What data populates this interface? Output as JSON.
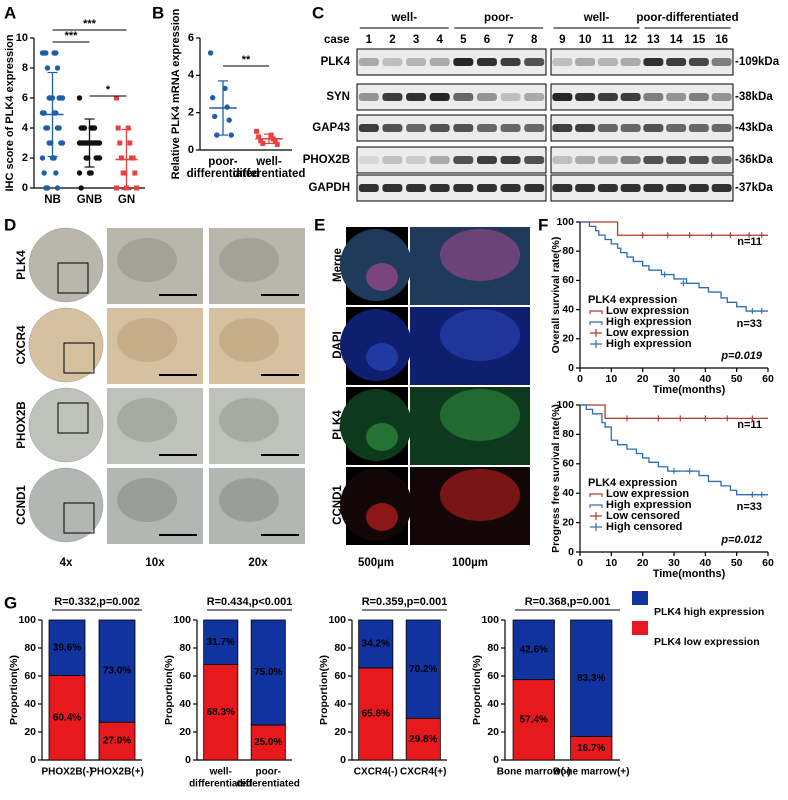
{
  "panel_labels": [
    "A",
    "B",
    "C",
    "D",
    "E",
    "F",
    "G"
  ],
  "chart_data": [
    {
      "type": "strip",
      "ylabel": "IHC score of PLK4 expression",
      "categories": [
        "NB",
        "GNB",
        "GN"
      ],
      "colors": [
        "#1f5fa8",
        "#111111",
        "#e8423f"
      ],
      "markers": [
        "circle",
        "circle",
        "square"
      ],
      "points": [
        [
          9,
          9,
          9,
          9,
          9,
          8,
          8,
          6,
          6,
          6,
          6,
          6,
          6,
          5,
          5,
          5,
          5,
          4,
          4,
          4,
          4,
          3,
          3,
          3,
          3,
          2,
          2,
          2,
          1,
          1,
          0,
          0,
          0
        ],
        [
          6,
          4,
          4,
          4,
          4,
          4,
          4,
          3,
          3,
          3,
          3,
          3,
          3,
          3,
          3,
          3,
          3,
          3,
          3,
          3,
          2,
          2,
          2,
          2,
          2,
          1,
          1,
          1,
          0
        ],
        [
          6,
          4,
          4,
          3,
          3,
          2,
          2,
          2,
          1,
          1,
          1,
          0,
          0,
          0
        ]
      ],
      "mean": [
        4.9,
        3.0,
        1.9
      ],
      "sd": [
        2.8,
        1.6,
        2.0
      ],
      "ylim": [
        0,
        10
      ],
      "yticks": [
        0,
        2,
        4,
        6,
        8,
        10
      ],
      "annotations": [
        {
          "text": "***",
          "between": [
            0,
            2
          ]
        },
        {
          "text": "***",
          "between": [
            0,
            1
          ]
        },
        {
          "text": "*",
          "between": [
            1,
            2
          ]
        }
      ]
    },
    {
      "type": "strip",
      "ylabel": "Relative PLK4 mRNA expression",
      "categories": [
        [
          "poor-",
          "differentiated"
        ],
        [
          "well-",
          "differentiated"
        ]
      ],
      "colors": [
        "#1f5fa8",
        "#e8423f"
      ],
      "markers": [
        "circle",
        "square"
      ],
      "points": [
        [
          5.2,
          3.3,
          2.8,
          2.3,
          1.8,
          1.6,
          0.8,
          0.8
        ],
        [
          1.0,
          0.8,
          0.7,
          0.6,
          0.5,
          0.45,
          0.35,
          0.3
        ]
      ],
      "mean": [
        2.25,
        0.6
      ],
      "sd": [
        1.45,
        0.25
      ],
      "ylim": [
        0,
        6
      ],
      "yticks": [
        0,
        2,
        4,
        6
      ],
      "annotations": [
        {
          "text": "**",
          "between": [
            0,
            1
          ]
        }
      ]
    },
    {
      "type": "step",
      "xlabel": "Time(months)",
      "ylabel": "Overall survival rate(%)",
      "xlim": [
        0,
        60
      ],
      "xticks": [
        0,
        10,
        20,
        30,
        40,
        50,
        60
      ],
      "ylim": [
        0,
        100
      ],
      "yticks": [
        0,
        20,
        40,
        60,
        80,
        100
      ],
      "legend_title": "PLK4 expression",
      "n_low": "n=11",
      "n_high": "n=33",
      "p_value": "p=0.019",
      "series": [
        {
          "name": "Low expression",
          "kind": "line",
          "color": "#b03a2e",
          "x": [
            0,
            12,
            12,
            60
          ],
          "values": [
            100,
            100,
            90.9,
            90.9
          ]
        },
        {
          "name": "High expression",
          "kind": "line",
          "color": "#2e6db4",
          "x": [
            0,
            3,
            3,
            5,
            5,
            6,
            6,
            8,
            8,
            10,
            10,
            12,
            12,
            13,
            13,
            15,
            15,
            17,
            17,
            20,
            20,
            22,
            22,
            26,
            26,
            30,
            30,
            34,
            34,
            38,
            38,
            41,
            41,
            45,
            45,
            47,
            47,
            50,
            50,
            53,
            53,
            60
          ],
          "values": [
            100,
            100,
            97,
            97,
            94,
            94,
            91,
            91,
            88,
            88,
            85,
            85,
            82,
            82,
            79,
            79,
            76,
            76,
            73,
            73,
            70,
            70,
            67,
            67,
            64,
            64,
            61,
            61,
            58,
            58,
            55,
            55,
            52,
            52,
            48,
            48,
            45,
            45,
            42,
            42,
            39,
            39
          ]
        },
        {
          "name": "Low expression",
          "kind": "censor",
          "color": "#b03a2e",
          "x": [
            20,
            28,
            35,
            42,
            48,
            54,
            58
          ],
          "values": [
            90.9,
            90.9,
            90.9,
            90.9,
            90.9,
            90.9,
            90.9
          ]
        },
        {
          "name": "High expression",
          "kind": "censor",
          "color": "#2e6db4",
          "x": [
            27,
            33,
            55,
            58
          ],
          "values": [
            64,
            58,
            39,
            39
          ]
        }
      ]
    },
    {
      "type": "step",
      "xlabel": "Time(months)",
      "ylabel": "Progress free survival rate(%)",
      "xlim": [
        0,
        60
      ],
      "xticks": [
        0,
        10,
        20,
        30,
        40,
        50,
        60
      ],
      "ylim": [
        0,
        100
      ],
      "yticks": [
        0,
        20,
        40,
        60,
        80,
        100
      ],
      "legend_title": "PLK4 expression",
      "n_low": "n=11",
      "n_high": "n=33",
      "p_value": "p=0.012",
      "series": [
        {
          "name": "Low expression",
          "kind": "line",
          "color": "#b03a2e",
          "x": [
            0,
            8,
            8,
            60
          ],
          "values": [
            100,
            100,
            90.9,
            90.9
          ]
        },
        {
          "name": "High expression",
          "kind": "line",
          "color": "#2e6db4",
          "x": [
            0,
            2,
            2,
            4,
            4,
            7,
            7,
            8,
            8,
            10,
            10,
            12,
            12,
            15,
            15,
            18,
            18,
            20,
            20,
            22,
            22,
            25,
            25,
            28,
            28,
            38,
            38,
            41,
            41,
            45,
            45,
            48,
            48,
            50,
            50,
            60
          ],
          "values": [
            100,
            100,
            97,
            97,
            94,
            94,
            88,
            88,
            85,
            85,
            76,
            76,
            73,
            73,
            70,
            70,
            67,
            67,
            64,
            64,
            61,
            61,
            58,
            58,
            55,
            55,
            52,
            52,
            48,
            48,
            45,
            45,
            42,
            42,
            39,
            39
          ]
        },
        {
          "name": "Low censored",
          "kind": "censor",
          "color": "#b03a2e",
          "x": [
            15,
            25,
            32,
            40,
            47,
            55
          ],
          "values": [
            90.9,
            90.9,
            90.9,
            90.9,
            90.9,
            90.9
          ]
        },
        {
          "name": "High censored",
          "kind": "censor",
          "color": "#2e6db4",
          "x": [
            30,
            35,
            55,
            58
          ],
          "values": [
            55,
            55,
            39,
            39
          ]
        }
      ]
    },
    {
      "type": "stacked_bar",
      "title": "R=0.332,p=0.002",
      "ylabel": "Proportion(%)",
      "categories": [
        "PHOX2B(-)",
        "PHOX2B(+)"
      ],
      "ylim": [
        0,
        100
      ],
      "yticks": [
        0,
        20,
        40,
        60,
        80,
        100
      ],
      "series": [
        {
          "color": "#e8191d",
          "values": [
            60.4,
            27.0
          ],
          "value_labels": [
            "60.4%",
            "27.0%"
          ]
        },
        {
          "color": "#1033a0",
          "values": [
            39.6,
            73.0
          ],
          "value_labels": [
            "39.6%",
            "73.0%"
          ]
        }
      ]
    },
    {
      "type": "stacked_bar",
      "title": "R=0.434,p<0.001",
      "ylabel": "Proportion(%)",
      "categories": [
        [
          "well-",
          "differentiated"
        ],
        [
          "poor-",
          "differentiated"
        ]
      ],
      "ylim": [
        0,
        100
      ],
      "yticks": [
        0,
        20,
        40,
        60,
        80,
        100
      ],
      "series": [
        {
          "color": "#e8191d",
          "values": [
            68.3,
            25.0
          ],
          "value_labels": [
            "68.3%",
            "25.0%"
          ]
        },
        {
          "color": "#1033a0",
          "values": [
            31.7,
            75.0
          ],
          "value_labels": [
            "31.7%",
            "75.0%"
          ]
        }
      ]
    },
    {
      "type": "stacked_bar",
      "title": "R=0.359,p=0.001",
      "ylabel": "Proportion(%)",
      "categories": [
        "CXCR4(-)",
        "CXCR4(+)"
      ],
      "ylim": [
        0,
        100
      ],
      "yticks": [
        0,
        20,
        40,
        60,
        80,
        100
      ],
      "series": [
        {
          "color": "#e8191d",
          "values": [
            65.8,
            29.8
          ],
          "value_labels": [
            "65.8%",
            "29.8%"
          ]
        },
        {
          "color": "#1033a0",
          "values": [
            34.2,
            70.2
          ],
          "value_labels": [
            "34.2%",
            "70.2%"
          ]
        }
      ]
    },
    {
      "type": "stacked_bar",
      "title": "R=0.368,p=0.001",
      "ylabel": "Proportion(%)",
      "categories": [
        "Bone marrow(-)",
        "Bone marrow(+)"
      ],
      "ylim": [
        0,
        100
      ],
      "yticks": [
        0,
        20,
        40,
        60,
        80,
        100
      ],
      "legend": "right",
      "series": [
        {
          "name": "PLK4 low expression",
          "color": "#e8191d",
          "values": [
            57.4,
            16.7
          ],
          "value_labels": [
            "57.4%",
            "16.7%"
          ]
        },
        {
          "name": "PLK4 high expression",
          "color": "#1033a0",
          "values": [
            42.6,
            83.3
          ],
          "value_labels": [
            "42.6%",
            "83.3%"
          ]
        }
      ]
    }
  ],
  "western_blot": {
    "groups": [
      "well-",
      "poor-",
      "well-",
      "poor-differentiated"
    ],
    "case_label": "case",
    "lanes": [
      "1",
      "2",
      "3",
      "4",
      "5",
      "6",
      "7",
      "8",
      "9",
      "10",
      "11",
      "12",
      "13",
      "14",
      "15",
      "16"
    ],
    "proteins": [
      "PLK4",
      "SYN",
      "GAP43",
      "PHOX2B",
      "GAPDH"
    ],
    "sizes": [
      "-109kDa",
      "-38kDa",
      "-43kDa",
      "-36kDa",
      "-37kDa"
    ]
  },
  "ihc": {
    "rows": [
      "PLK4",
      "CXCR4",
      "PHOX2B",
      "CCND1"
    ],
    "columns": [
      "4x",
      "10x",
      "20x"
    ]
  },
  "immunofluorescence": {
    "rows": [
      "Merge",
      "DAPI",
      "PLK4",
      "CCND1"
    ],
    "columns": [
      "500µm",
      "100µm"
    ]
  }
}
